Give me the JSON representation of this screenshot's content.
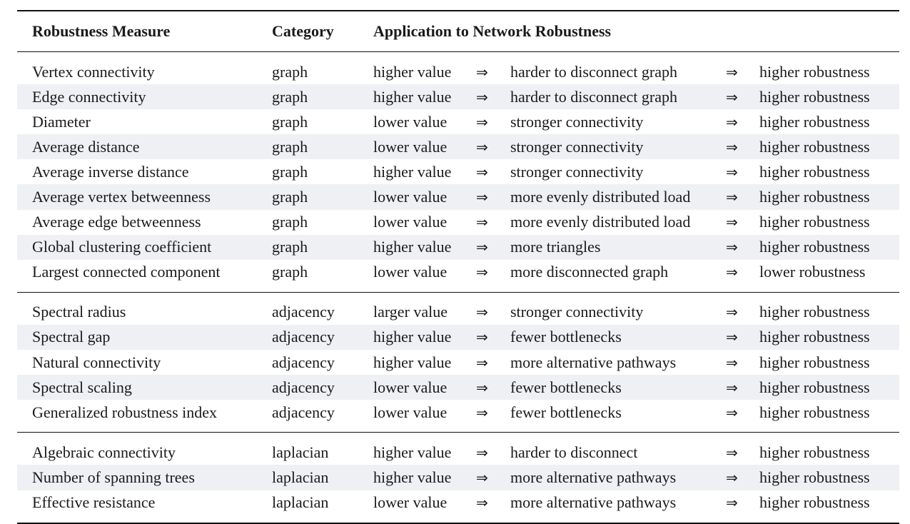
{
  "table": {
    "headers": {
      "measure": "Robustness Measure",
      "category": "Category",
      "application": "Application to Network Robustness"
    },
    "arrow": "⇒",
    "groups": [
      {
        "rows": [
          {
            "measure": "Vertex connectivity",
            "category": "graph",
            "value": "higher value",
            "effect": "harder to disconnect graph",
            "result": "higher robustness"
          },
          {
            "measure": "Edge connectivity",
            "category": "graph",
            "value": "higher value",
            "effect": "harder to disconnect graph",
            "result": "higher robustness"
          },
          {
            "measure": "Diameter",
            "category": "graph",
            "value": "lower value",
            "effect": "stronger connectivity",
            "result": "higher robustness"
          },
          {
            "measure": "Average distance",
            "category": "graph",
            "value": "lower value",
            "effect": "stronger connectivity",
            "result": "higher robustness"
          },
          {
            "measure": "Average inverse distance",
            "category": "graph",
            "value": "higher value",
            "effect": "stronger connectivity",
            "result": "higher robustness"
          },
          {
            "measure": "Average vertex betweenness",
            "category": "graph",
            "value": "lower value",
            "effect": "more evenly distributed load",
            "result": "higher robustness"
          },
          {
            "measure": "Average edge betweenness",
            "category": "graph",
            "value": "lower value",
            "effect": "more evenly distributed load",
            "result": "higher robustness"
          },
          {
            "measure": "Global clustering coefficient",
            "category": "graph",
            "value": "higher value",
            "effect": "more triangles",
            "result": "higher robustness"
          },
          {
            "measure": "Largest connected component",
            "category": "graph",
            "value": "lower value",
            "effect": "more disconnected graph",
            "result": "lower robustness"
          }
        ]
      },
      {
        "rows": [
          {
            "measure": "Spectral radius",
            "category": "adjacency",
            "value": "larger value",
            "effect": "stronger connectivity",
            "result": "higher robustness"
          },
          {
            "measure": "Spectral gap",
            "category": "adjacency",
            "value": "higher value",
            "effect": "fewer bottlenecks",
            "result": "higher robustness"
          },
          {
            "measure": "Natural connectivity",
            "category": "adjacency",
            "value": "higher value",
            "effect": "more alternative pathways",
            "result": "higher robustness"
          },
          {
            "measure": "Spectral scaling",
            "category": "adjacency",
            "value": "lower value",
            "effect": "fewer bottlenecks",
            "result": "higher robustness"
          },
          {
            "measure": "Generalized robustness index",
            "category": "adjacency",
            "value": "lower value",
            "effect": "fewer bottlenecks",
            "result": "higher robustness"
          }
        ]
      },
      {
        "rows": [
          {
            "measure": "Algebraic connectivity",
            "category": "laplacian",
            "value": "higher value",
            "effect": "harder to disconnect",
            "result": "higher robustness"
          },
          {
            "measure": "Number of spanning trees",
            "category": "laplacian",
            "value": "higher value",
            "effect": "more alternative pathways",
            "result": "higher robustness"
          },
          {
            "measure": "Effective resistance",
            "category": "laplacian",
            "value": "lower value",
            "effect": "more alternative pathways",
            "result": "higher robustness"
          }
        ]
      }
    ]
  }
}
